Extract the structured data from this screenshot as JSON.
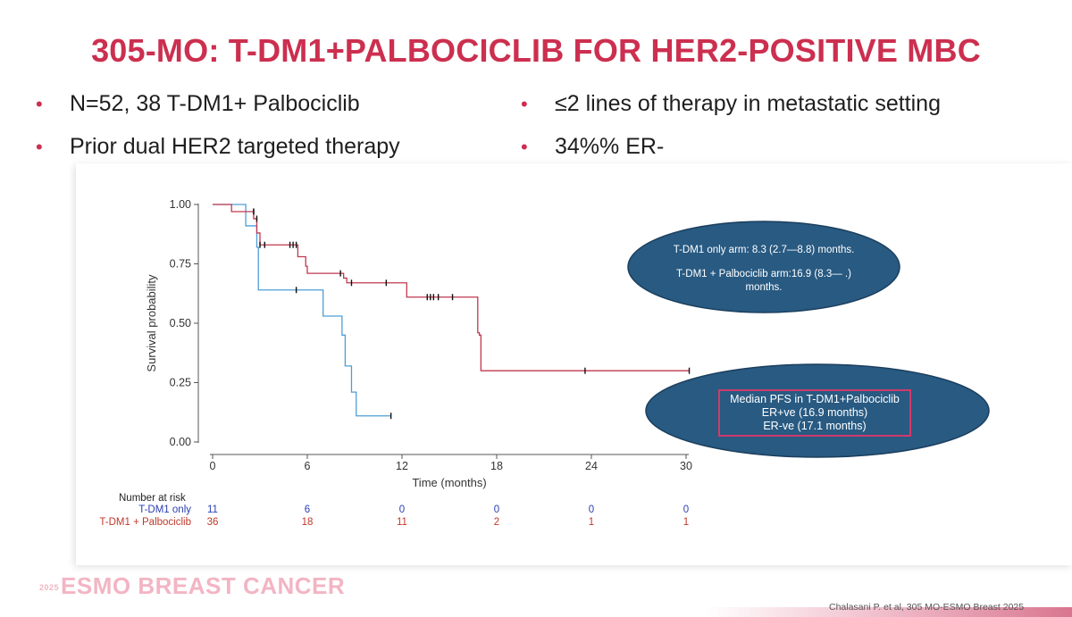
{
  "header": {
    "title": "305-MO: T-DM1+PALBOCICLIB FOR HER2-POSITIVE MBC"
  },
  "bullets": [
    "N=52, 38 T-DM1+ Palbociclib",
    "Prior dual HER2 targeted therapy",
    "≤2 lines of therapy in metastatic setting",
    "34%% ER-"
  ],
  "colors": {
    "accent": "#cc2f4f",
    "tdm1_only": "#4f9ed6",
    "tdm1_palbo": "#c0394f",
    "ellipse": "#285a82"
  },
  "chart_data": {
    "type": "line",
    "xlabel": "Time (months)",
    "ylabel": "Survival probability",
    "xticks": [
      "0",
      "6",
      "12",
      "18",
      "24",
      "30"
    ],
    "yticks": [
      "0.00",
      "0.25",
      "0.50",
      "0.75",
      "1.00"
    ],
    "xlim": [
      0,
      30
    ],
    "ylim": [
      0,
      1
    ],
    "series": [
      {
        "name": "T-DM1 only",
        "color": "#4f9ed6",
        "steps": [
          [
            0,
            1.0
          ],
          [
            2.1,
            0.91
          ],
          [
            2.8,
            0.82
          ],
          [
            2.9,
            0.64
          ],
          [
            7.0,
            0.53
          ],
          [
            8.2,
            0.45
          ],
          [
            8.4,
            0.32
          ],
          [
            8.8,
            0.21
          ],
          [
            9.1,
            0.11
          ],
          [
            11.3,
            0.11
          ]
        ],
        "censors": [
          [
            2.6,
            0.97
          ],
          [
            5.3,
            0.64
          ],
          [
            11.3,
            0.11
          ]
        ]
      },
      {
        "name": "T-DM1 + Palbociclib",
        "color": "#c0394f",
        "steps": [
          [
            0,
            1.0
          ],
          [
            1.2,
            0.97
          ],
          [
            2.6,
            0.94
          ],
          [
            2.8,
            0.88
          ],
          [
            3.0,
            0.83
          ],
          [
            5.4,
            0.78
          ],
          [
            5.9,
            0.74
          ],
          [
            6.0,
            0.71
          ],
          [
            8.3,
            0.69
          ],
          [
            8.5,
            0.67
          ],
          [
            12.3,
            0.61
          ],
          [
            16.8,
            0.46
          ],
          [
            16.9,
            0.45
          ],
          [
            17.0,
            0.3
          ],
          [
            30.2,
            0.3
          ]
        ],
        "censors": [
          [
            2.6,
            0.97
          ],
          [
            2.8,
            0.94
          ],
          [
            3.0,
            0.83
          ],
          [
            3.3,
            0.83
          ],
          [
            4.9,
            0.83
          ],
          [
            5.1,
            0.83
          ],
          [
            5.3,
            0.83
          ],
          [
            8.1,
            0.71
          ],
          [
            8.8,
            0.67
          ],
          [
            11.0,
            0.67
          ],
          [
            13.6,
            0.61
          ],
          [
            13.8,
            0.61
          ],
          [
            14.0,
            0.61
          ],
          [
            14.3,
            0.61
          ],
          [
            15.2,
            0.61
          ],
          [
            23.6,
            0.3
          ],
          [
            30.2,
            0.3
          ]
        ]
      }
    ],
    "risk_table": {
      "title": "Number at risk",
      "rows": [
        {
          "label": "T-DM1 only",
          "values": [
            "11",
            "6",
            "0",
            "0",
            "0",
            "0"
          ]
        },
        {
          "label": "T-DM1 + Palbociclib",
          "values": [
            "36",
            "18",
            "11",
            "2",
            "1",
            "1"
          ]
        }
      ]
    },
    "annotations": {
      "median_arms_line1": "T-DM1 only arm: 8.3 (2.7—8.8) months.",
      "median_arms_line2": "T-DM1 + Palbociclib arm:16.9 (8.3— .)",
      "median_arms_line3": "months.",
      "pfs_line1": "Median PFS in T-DM1+Palbociclib",
      "pfs_line2": "ER+ve (16.9 months)",
      "pfs_line3": "ER-ve (17.1 months)"
    }
  },
  "footer": {
    "logo_year": "2025",
    "logo_text": "ESMO BREAST CANCER",
    "citation": "Chalasani P. et al, 305 MO-ESMO Breast 2025"
  }
}
